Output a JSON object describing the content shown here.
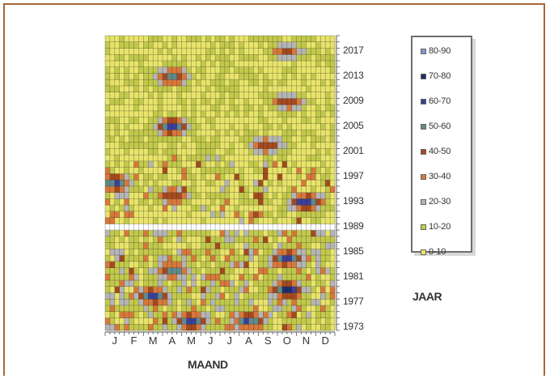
{
  "chart_data": {
    "type": "heatmap",
    "xlabel": "MAAND",
    "ylabel": "JAAR",
    "x_categories": [
      "J",
      "F",
      "M",
      "A",
      "M",
      "J",
      "J",
      "A",
      "S",
      "O",
      "N",
      "D"
    ],
    "y_tick_labels": [
      "2017",
      "2013",
      "2009",
      "2005",
      "2001",
      "1997",
      "1993",
      "1989",
      "1985",
      "1981",
      "1977",
      "1973"
    ],
    "y_range": [
      1973,
      2019
    ],
    "missing_year": 1989,
    "legend": [
      {
        "label": "80-90",
        "color": "#7a9cc2"
      },
      {
        "label": "70-80",
        "color": "#1f2d6b"
      },
      {
        "label": "60-70",
        "color": "#3a3f9a"
      },
      {
        "label": "50-60",
        "color": "#5f8a8b"
      },
      {
        "label": "40-50",
        "color": "#a44a1e"
      },
      {
        "label": "30-40",
        "color": "#d7783a"
      },
      {
        "label": "20-30",
        "color": "#b5b5b5"
      },
      {
        "label": "10-20",
        "color": "#c2c94a"
      },
      {
        "label": "0-10",
        "color": "#e8e46a"
      }
    ],
    "hotspots": [
      {
        "month": 5,
        "year": 1974,
        "value": 65
      },
      {
        "month": 8,
        "year": 1974,
        "value": 60
      },
      {
        "month": 3,
        "year": 1978,
        "value": 60
      },
      {
        "month": 10,
        "year": 1979,
        "value": 70
      },
      {
        "month": 4,
        "year": 1982,
        "value": 55
      },
      {
        "month": 10,
        "year": 1984,
        "value": 65
      },
      {
        "month": 4,
        "year": 1994,
        "value": 45
      },
      {
        "month": 1,
        "year": 1996,
        "value": 60
      },
      {
        "month": 11,
        "year": 1993,
        "value": 65
      },
      {
        "month": 4,
        "year": 2005,
        "value": 65
      },
      {
        "month": 9,
        "year": 2002,
        "value": 45
      },
      {
        "month": 10,
        "year": 2009,
        "value": 45
      },
      {
        "month": 4,
        "year": 2013,
        "value": 55
      },
      {
        "month": 10,
        "year": 2017,
        "value": 40
      }
    ]
  }
}
